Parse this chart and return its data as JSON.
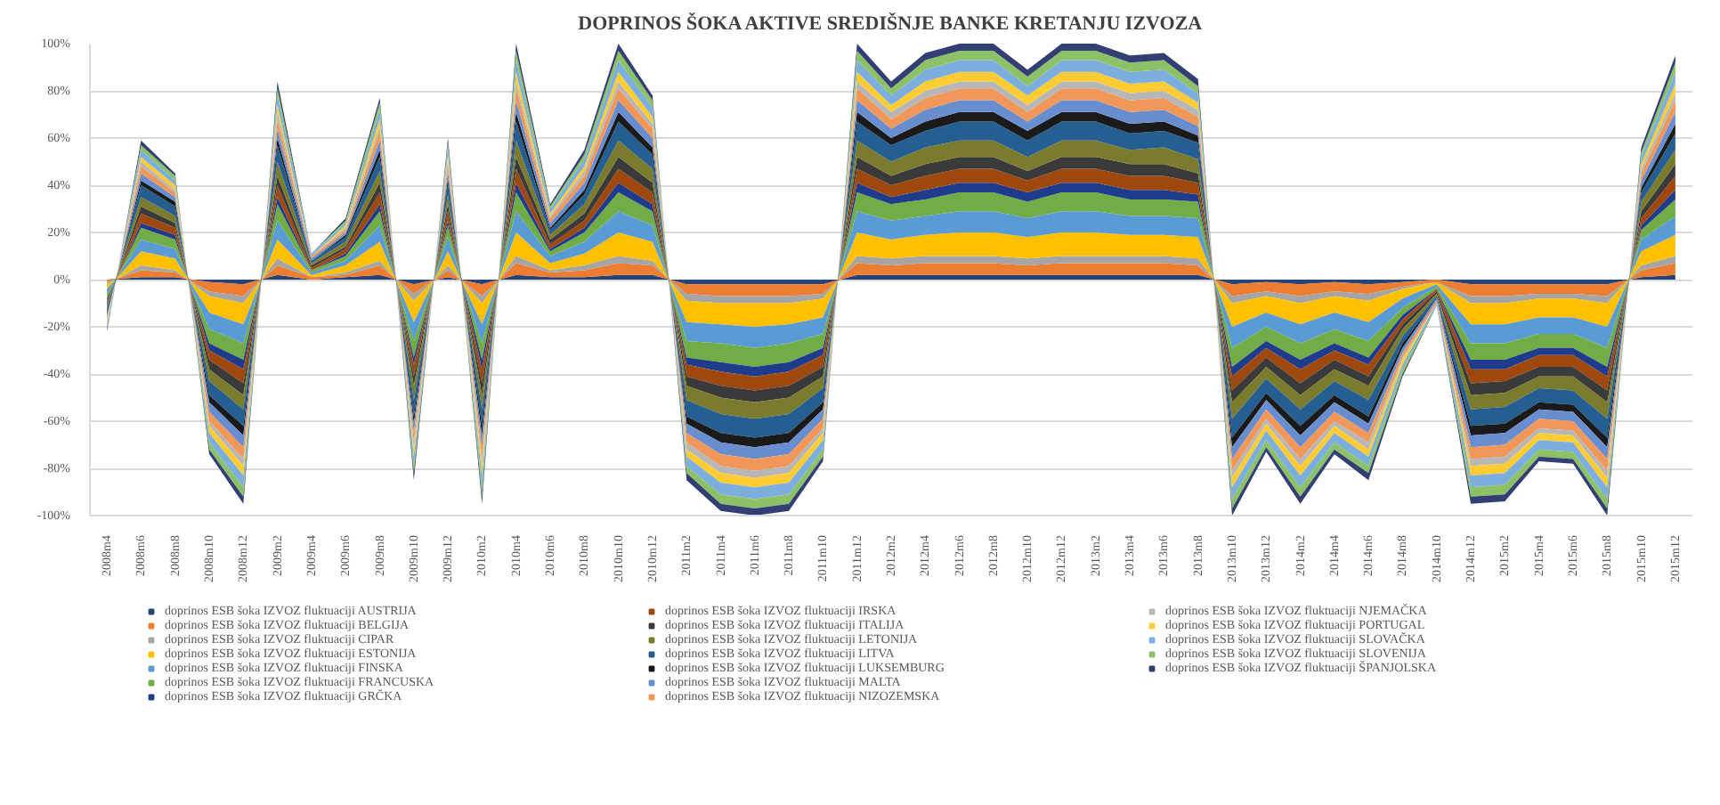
{
  "chart_data": {
    "type": "area",
    "stacked": true,
    "title": "DOPRINOS ŠOKA AKTIVE SREDIŠNJE BANKE KRETANJU IZVOZA",
    "categories": [
      "2008m4",
      "2008m6",
      "2008m8",
      "2008m10",
      "2008m12",
      "2009m2",
      "2009m4",
      "2009m6",
      "2009m8",
      "2009m10",
      "2009m12",
      "2010m2",
      "2010m4",
      "2010m6",
      "2010m8",
      "2010m10",
      "2010m12",
      "2011m2",
      "2011m4",
      "2011m6",
      "2011m8",
      "2011m10",
      "2011m12",
      "2012m2",
      "2012m4",
      "2012m6",
      "2012m8",
      "2012m10",
      "2012m12",
      "2013m2",
      "2013m4",
      "2013m6",
      "2013m8",
      "2013m10",
      "2013m12",
      "2014m2",
      "2014m4",
      "2014m6",
      "2014m8",
      "2014m10",
      "2014m12",
      "2015m2",
      "2015m4",
      "2015m6",
      "2015m8",
      "2015m10",
      "2015m12"
    ],
    "ylim": [
      -100,
      100
    ],
    "yticks": [
      {
        "value": -100,
        "label": "-100%"
      },
      {
        "value": -80,
        "label": "-80%"
      },
      {
        "value": -60,
        "label": "-60%"
      },
      {
        "value": -40,
        "label": "-40%"
      },
      {
        "value": -20,
        "label": "-20%"
      },
      {
        "value": 0,
        "label": "0%"
      },
      {
        "value": 20,
        "label": "20%"
      },
      {
        "value": 40,
        "label": "40%"
      },
      {
        "value": 60,
        "label": "60%"
      },
      {
        "value": 80,
        "label": "80%"
      },
      {
        "value": 100,
        "label": "100%"
      }
    ],
    "grid": "y",
    "legend": "bottom",
    "series": [
      {
        "name": "doprinos ESB šoka IZVOZ fluktuaciji AUSTRIJA",
        "color": "#264478",
        "values": [
          0,
          1,
          1,
          -1,
          -2,
          2,
          0,
          1,
          2,
          -2,
          1,
          -2,
          2,
          1,
          1,
          2,
          2,
          -2,
          -2,
          -2,
          -2,
          -2,
          2,
          2,
          2,
          2,
          2,
          2,
          2,
          2,
          2,
          2,
          2,
          -2,
          -1,
          -2,
          -1,
          -2,
          -1,
          0,
          -2,
          -2,
          -2,
          -2,
          -2,
          1,
          2
        ]
      },
      {
        "name": "doprinos ESB šoka IZVOZ fluktuaciji BELGIJA",
        "color": "#ed7d31",
        "values": [
          -1,
          3,
          2,
          -4,
          -5,
          4,
          1,
          1,
          4,
          -4,
          3,
          -5,
          5,
          2,
          3,
          5,
          4,
          -4,
          -5,
          -5,
          -5,
          -4,
          5,
          4,
          5,
          5,
          5,
          4,
          5,
          5,
          5,
          5,
          4,
          -5,
          -4,
          -5,
          -4,
          -4,
          -2,
          -1,
          -5,
          -5,
          -4,
          -4,
          -5,
          3,
          5
        ]
      },
      {
        "name": "doprinos ESB šoka IZVOZ fluktuaciji CIPAR",
        "color": "#a5a5a5",
        "values": [
          -1,
          2,
          1,
          -2,
          -3,
          3,
          0,
          1,
          2,
          -3,
          2,
          -3,
          3,
          1,
          2,
          3,
          2,
          -3,
          -3,
          -3,
          -3,
          -2,
          3,
          3,
          3,
          3,
          3,
          3,
          3,
          3,
          3,
          3,
          3,
          -3,
          -2,
          -3,
          -2,
          -3,
          -1,
          0,
          -3,
          -3,
          -2,
          -2,
          -3,
          2,
          3
        ]
      },
      {
        "name": "doprinos ESB šoka IZVOZ fluktuaciji ESTONIJA",
        "color": "#ffc000",
        "values": [
          -2,
          6,
          5,
          -7,
          -9,
          8,
          1,
          3,
          8,
          -9,
          6,
          -9,
          10,
          3,
          5,
          10,
          8,
          -9,
          -9,
          -10,
          -9,
          -8,
          10,
          8,
          9,
          10,
          10,
          9,
          10,
          10,
          9,
          9,
          9,
          -10,
          -7,
          -9,
          -7,
          -9,
          -4,
          -1,
          -9,
          -9,
          -8,
          -8,
          -10,
          6,
          9
        ]
      },
      {
        "name": "doprinos ESB šoka IZVOZ fluktuaciji FINSKA",
        "color": "#5b9bd5",
        "values": [
          -2,
          5,
          4,
          -7,
          -8,
          8,
          1,
          2,
          7,
          -8,
          6,
          -8,
          9,
          3,
          5,
          9,
          7,
          -8,
          -8,
          -9,
          -8,
          -7,
          9,
          8,
          8,
          9,
          9,
          8,
          9,
          9,
          8,
          8,
          8,
          -9,
          -6,
          -8,
          -7,
          -8,
          -4,
          -1,
          -8,
          -8,
          -7,
          -7,
          -9,
          5,
          8
        ]
      },
      {
        "name": "doprinos ESB šoka IZVOZ fluktuaciji FRANCUSKA",
        "color": "#70ad47",
        "values": [
          -2,
          5,
          4,
          -6,
          -7,
          7,
          1,
          2,
          6,
          -7,
          5,
          -7,
          8,
          2,
          4,
          8,
          6,
          -7,
          -8,
          -8,
          -8,
          -6,
          8,
          7,
          7,
          8,
          8,
          7,
          8,
          8,
          7,
          7,
          7,
          -8,
          -6,
          -7,
          -6,
          -7,
          -3,
          -1,
          -7,
          -7,
          -6,
          -6,
          -8,
          4,
          7
        ]
      },
      {
        "name": "doprinos ESB šoka IZVOZ fluktuaciji GRČKA",
        "color": "#1f3b8c",
        "values": [
          -1,
          2,
          2,
          -3,
          -4,
          3,
          0,
          1,
          3,
          -3,
          2,
          -4,
          4,
          1,
          2,
          4,
          3,
          -3,
          -4,
          -4,
          -4,
          -3,
          4,
          3,
          4,
          4,
          4,
          4,
          4,
          4,
          4,
          4,
          3,
          -4,
          -3,
          -4,
          -3,
          -3,
          -2,
          0,
          -4,
          -4,
          -3,
          -3,
          -4,
          2,
          4
        ]
      },
      {
        "name": "doprinos ESB šoka IZVOZ fluktuaciji IRSKA",
        "color": "#9e480e",
        "values": [
          -1,
          4,
          3,
          -4,
          -6,
          5,
          1,
          2,
          5,
          -5,
          4,
          -6,
          6,
          2,
          3,
          6,
          5,
          -5,
          -6,
          -6,
          -6,
          -5,
          6,
          5,
          6,
          6,
          6,
          5,
          6,
          6,
          6,
          6,
          5,
          -6,
          -4,
          -6,
          -4,
          -5,
          -2,
          -1,
          -6,
          -5,
          -5,
          -5,
          -6,
          3,
          6
        ]
      },
      {
        "name": "doprinos ESB šoka IZVOZ fluktuaciji ITALIJA",
        "color": "#3a3a3a",
        "values": [
          -1,
          3,
          2,
          -4,
          -5,
          4,
          1,
          1,
          4,
          -4,
          3,
          -5,
          5,
          2,
          3,
          5,
          4,
          -4,
          -5,
          -5,
          -5,
          -4,
          5,
          4,
          5,
          5,
          5,
          4,
          5,
          5,
          5,
          5,
          4,
          -5,
          -4,
          -5,
          -4,
          -4,
          -2,
          -1,
          -5,
          -5,
          -4,
          -4,
          -5,
          3,
          5
        ]
      },
      {
        "name": "doprinos ESB šoka IZVOZ fluktuaciji LETONIJA",
        "color": "#7b7b2e",
        "values": [
          -1,
          4,
          3,
          -5,
          -6,
          6,
          1,
          2,
          5,
          -6,
          4,
          -6,
          7,
          2,
          4,
          7,
          6,
          -6,
          -7,
          -7,
          -7,
          -5,
          7,
          6,
          7,
          7,
          7,
          6,
          7,
          7,
          6,
          7,
          6,
          -7,
          -5,
          -6,
          -5,
          -6,
          -3,
          -1,
          -6,
          -6,
          -5,
          -6,
          -7,
          4,
          6
        ]
      },
      {
        "name": "doprinos ESB šoka IZVOZ fluktuaciji LITVA",
        "color": "#255e91",
        "values": [
          -2,
          5,
          4,
          -6,
          -7,
          7,
          1,
          2,
          6,
          -7,
          5,
          -7,
          8,
          2,
          4,
          8,
          6,
          -7,
          -8,
          -8,
          -8,
          -6,
          8,
          7,
          7,
          8,
          8,
          7,
          8,
          8,
          7,
          7,
          7,
          -8,
          -6,
          -7,
          -6,
          -7,
          -3,
          -1,
          -7,
          -7,
          -6,
          -6,
          -8,
          4,
          7
        ]
      },
      {
        "name": "doprinos ESB šoka IZVOZ fluktuaciji LUKSEMBURG",
        "color": "#1a1a1a",
        "values": [
          -1,
          2,
          2,
          -3,
          -4,
          3,
          0,
          1,
          3,
          -3,
          2,
          -4,
          4,
          1,
          2,
          4,
          3,
          -3,
          -4,
          -4,
          -4,
          -3,
          4,
          3,
          4,
          4,
          4,
          4,
          4,
          4,
          4,
          4,
          3,
          -4,
          -3,
          -4,
          -3,
          -3,
          -2,
          0,
          -4,
          -4,
          -3,
          -3,
          -4,
          2,
          4
        ]
      },
      {
        "name": "doprinos ESB šoka IZVOZ fluktuaciji MALTA",
        "color": "#698ed0",
        "values": [
          -1,
          3,
          2,
          -4,
          -5,
          4,
          1,
          1,
          4,
          -4,
          3,
          -5,
          5,
          2,
          3,
          5,
          4,
          -4,
          -5,
          -5,
          -5,
          -4,
          5,
          4,
          5,
          5,
          5,
          4,
          5,
          5,
          5,
          5,
          4,
          -5,
          -4,
          -5,
          -4,
          -4,
          -2,
          -1,
          -5,
          -5,
          -4,
          -4,
          -5,
          3,
          5
        ]
      },
      {
        "name": "doprinos ESB šoka IZVOZ fluktuaciji NIZOZEMSKA",
        "color": "#f1975a",
        "values": [
          -1,
          3,
          2,
          -4,
          -5,
          4,
          1,
          1,
          4,
          -4,
          3,
          -5,
          5,
          2,
          3,
          5,
          4,
          -4,
          -5,
          -5,
          -5,
          -4,
          5,
          4,
          5,
          5,
          5,
          4,
          5,
          5,
          5,
          5,
          4,
          -5,
          -4,
          -5,
          -4,
          -4,
          -2,
          -1,
          -5,
          -5,
          -4,
          -4,
          -5,
          3,
          5
        ]
      },
      {
        "name": "doprinos ESB šoka IZVOZ fluktuaciji NJEMAČKA",
        "color": "#b7b7b7",
        "values": [
          -1,
          2,
          1,
          -2,
          -3,
          3,
          0,
          1,
          2,
          -3,
          2,
          -3,
          3,
          1,
          2,
          3,
          2,
          -3,
          -3,
          -3,
          -3,
          -2,
          3,
          3,
          3,
          3,
          3,
          3,
          3,
          3,
          3,
          3,
          3,
          -3,
          -2,
          -3,
          -2,
          -3,
          -1,
          0,
          -3,
          -3,
          -2,
          -2,
          -3,
          2,
          3
        ]
      },
      {
        "name": "doprinos ESB šoka IZVOZ fluktuaciji PORTUGAL",
        "color": "#ffcd33",
        "values": [
          -1,
          2,
          2,
          -3,
          -4,
          3,
          0,
          1,
          3,
          -3,
          2,
          -4,
          4,
          1,
          2,
          4,
          3,
          -3,
          -4,
          -4,
          -4,
          -3,
          4,
          3,
          4,
          4,
          4,
          4,
          4,
          4,
          4,
          4,
          3,
          -4,
          -3,
          -4,
          -3,
          -3,
          -2,
          0,
          -4,
          -4,
          -3,
          -3,
          -4,
          2,
          4
        ]
      },
      {
        "name": "doprinos ESB šoka IZVOZ fluktuaciji SLOVAČKA",
        "color": "#7cafdd",
        "values": [
          -1,
          3,
          2,
          -4,
          -5,
          4,
          1,
          1,
          4,
          -4,
          3,
          -5,
          5,
          2,
          3,
          5,
          4,
          -4,
          -5,
          -5,
          -5,
          -4,
          5,
          4,
          5,
          5,
          5,
          4,
          5,
          5,
          5,
          5,
          4,
          -5,
          -4,
          -5,
          -4,
          -4,
          -2,
          -1,
          -5,
          -5,
          -4,
          -4,
          -5,
          3,
          5
        ]
      },
      {
        "name": "doprinos ESB šoka IZVOZ fluktuaciji SLOVENIJA",
        "color": "#8cc168",
        "values": [
          -1,
          2,
          2,
          -3,
          -4,
          3,
          0,
          1,
          3,
          -3,
          2,
          -4,
          4,
          1,
          2,
          4,
          3,
          -3,
          -4,
          -4,
          -4,
          -3,
          4,
          3,
          4,
          4,
          4,
          4,
          4,
          4,
          4,
          4,
          3,
          -4,
          -3,
          -4,
          -3,
          -3,
          -2,
          0,
          -4,
          -4,
          -3,
          -3,
          -4,
          2,
          4
        ]
      },
      {
        "name": "doprinos ESB šoka IZVOZ fluktuaciji ŠPANJOLSKA",
        "color": "#333f73",
        "values": [
          -1,
          2,
          1,
          -2,
          -3,
          3,
          0,
          1,
          2,
          -3,
          2,
          -3,
          3,
          1,
          2,
          3,
          2,
          -3,
          -3,
          -3,
          -3,
          -2,
          3,
          3,
          3,
          3,
          3,
          3,
          3,
          3,
          3,
          3,
          3,
          -3,
          -2,
          -3,
          -2,
          -3,
          -1,
          0,
          -3,
          -3,
          -2,
          -2,
          -3,
          2,
          3
        ]
      }
    ]
  }
}
